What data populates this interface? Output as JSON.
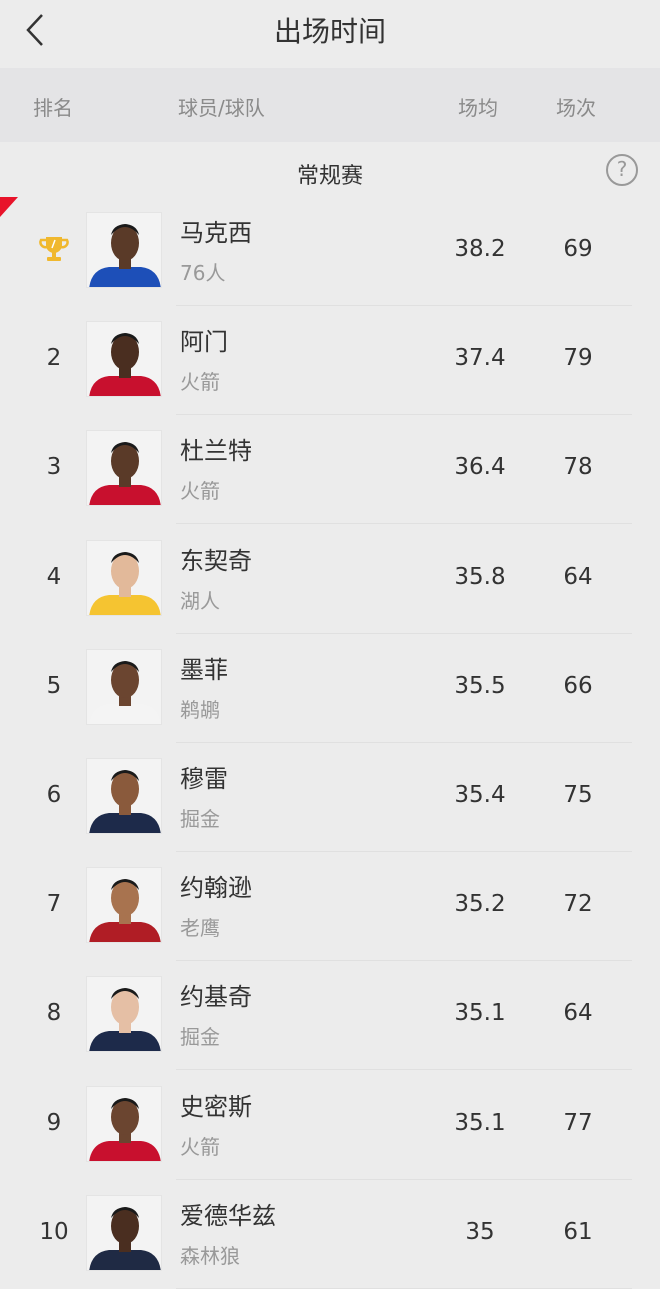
{
  "nav": {
    "title": "出场时间",
    "back_icon": "chevron-left-icon"
  },
  "header": {
    "rank": "排名",
    "player_team": "球员/球队",
    "avg": "场均",
    "games": "场次"
  },
  "section": {
    "label": "常规赛",
    "help_icon": "question-circle-icon",
    "help_glyph": "?"
  },
  "colors": {
    "trophy": "#f0b82e",
    "corner_accent": "#e8132a"
  },
  "players": [
    {
      "rank": "1",
      "name": "马克西",
      "team": "76人",
      "avg": "38.2",
      "games": "69",
      "jersey": "#1d4fb8",
      "skin": "#5a3a28"
    },
    {
      "rank": "2",
      "name": "阿门",
      "team": "火箭",
      "avg": "37.4",
      "games": "79",
      "jersey": "#c8102e",
      "skin": "#4a2e20"
    },
    {
      "rank": "3",
      "name": "杜兰特",
      "team": "火箭",
      "avg": "36.4",
      "games": "78",
      "jersey": "#c8102e",
      "skin": "#5a3a28"
    },
    {
      "rank": "4",
      "name": "东契奇",
      "team": "湖人",
      "avg": "35.8",
      "games": "64",
      "jersey": "#f5c431",
      "skin": "#e2b99a"
    },
    {
      "rank": "5",
      "name": "墨菲",
      "team": "鹈鹕",
      "avg": "35.5",
      "games": "66",
      "jersey": "#f4f4f4",
      "skin": "#6b4530"
    },
    {
      "rank": "6",
      "name": "穆雷",
      "team": "掘金",
      "avg": "35.4",
      "games": "75",
      "jersey": "#1d2a4a",
      "skin": "#8a5a3c"
    },
    {
      "rank": "7",
      "name": "约翰逊",
      "team": "老鹰",
      "avg": "35.2",
      "games": "72",
      "jersey": "#b01d25",
      "skin": "#a8734f"
    },
    {
      "rank": "8",
      "name": "约基奇",
      "team": "掘金",
      "avg": "35.1",
      "games": "64",
      "jersey": "#1d2a4a",
      "skin": "#e5bfa5"
    },
    {
      "rank": "9",
      "name": "史密斯",
      "team": "火箭",
      "avg": "35.1",
      "games": "77",
      "jersey": "#c8102e",
      "skin": "#6b4530"
    },
    {
      "rank": "10",
      "name": "爱德华兹",
      "team": "森林狼",
      "avg": "35",
      "games": "61",
      "jersey": "#1f2a44",
      "skin": "#4a2e20"
    }
  ]
}
